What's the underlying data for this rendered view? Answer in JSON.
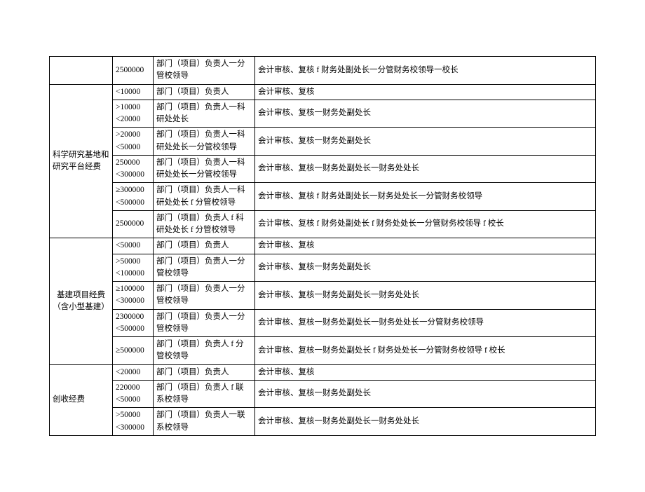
{
  "rows": [
    {
      "cat": "",
      "catRowspan": 1,
      "amount": "2500000",
      "approval": "部门（项目）负责人一分管校领导",
      "finance": "会计审核、复核 f 财务处副处长一分管财务校领导一校长"
    },
    {
      "cat": "科学研究基地和研究平台经费",
      "catRowspan": 6,
      "amount": "<10000",
      "approval": "部门（项目）负责人",
      "finance": "会计审核、复核"
    },
    {
      "amount": ">10000\n<20000",
      "approval": "部门（项目）负责人一科研处处长",
      "finance": "会计审核、复核一财务处副处长"
    },
    {
      "amount": ">20000\n<50000",
      "approval": "部门（项目）负责人一科研处处长一分管校领导",
      "finance": "会计审核、复核一财务处副处长"
    },
    {
      "amount": "250000\n<300000",
      "approval": "部门（项目）负责人一科研处处长一分管校领导",
      "finance": "会计审核、复核一财务处副处长一财务处处长"
    },
    {
      "amount": "≥300000\n<500000",
      "approval": "部门（项目）负责人一科研处处长 f 分管校领导",
      "finance": "会计审核、复核 f 财务处副处长一财务处处长一分管财务校领导"
    },
    {
      "amount": "2500000",
      "approval": "部门（项目）负责人 f 科研处处长 f 分管校领导",
      "finance": "会计审核、复核 f 财务处副处长 f 财务处处长一分管财务校领导 f 校长"
    },
    {
      "cat": "基建项目经费（含小型基建）",
      "catRowspan": 5,
      "amount": "<50000",
      "approval": "部门（项目）负责人",
      "finance": "会计审核、复核"
    },
    {
      "amount": ">50000\n<100000",
      "approval": "部门（项目）负责人一分管校领导",
      "finance": "会计审核、复核一财务处副处长"
    },
    {
      "amount": "≥100000\n<300000",
      "approval": "部门（项目）负责人一分管校领导",
      "finance": "会计审核、复核一财务处副处长一财务处处长"
    },
    {
      "amount": "2300000\n<500000",
      "approval": "部门（项目）负责人一分管校领导",
      "finance": "会计审核、复核一财务处副处长一财务处处长一分管财务校领导"
    },
    {
      "amount": "≥500000",
      "approval": "部门（项目）负责人 f 分管校领导",
      "finance": "会计审核、复核一财务处副处长 f 财务处处长一分管财务校领导 f 校长"
    },
    {
      "cat": "创收经费",
      "catRowspan": 3,
      "amount": "<20000",
      "approval": "部门（项目）负责人",
      "finance": "会计审核、复核"
    },
    {
      "amount": "220000\n<50000",
      "approval": "部门（项目）负责人 f 联系校领导",
      "finance": "会计审核、复核一财务处副处长"
    },
    {
      "amount": ">50000\n<300000",
      "approval": "部门（项目）负责人一联系校领导",
      "finance": "会计审核、复核一财务处副处长一财务处处长"
    }
  ]
}
